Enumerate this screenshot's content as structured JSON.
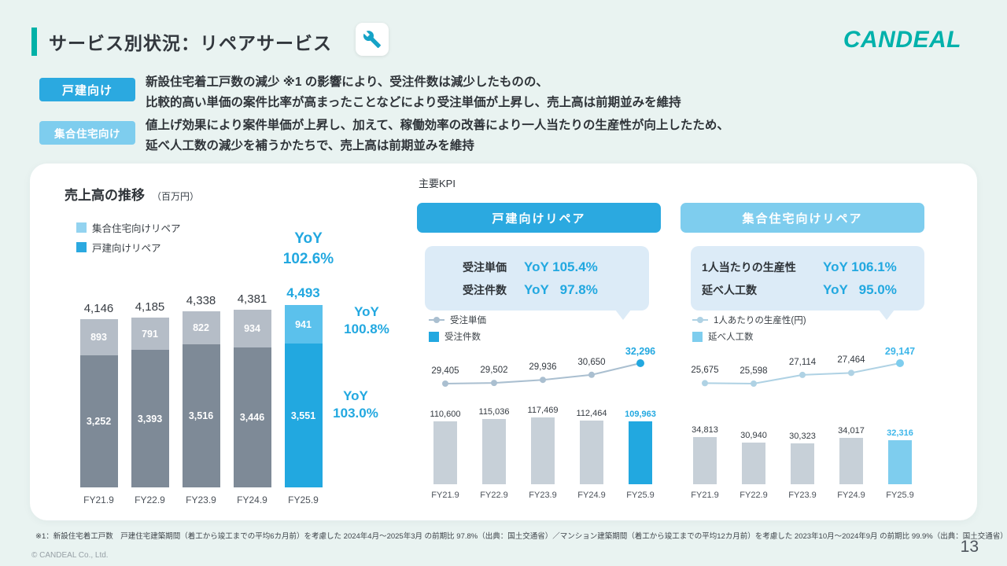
{
  "page": {
    "title": "サービス別状況：リペアサービス",
    "logo_text": "CANDEAL",
    "kpi_section_label": "主要KPI",
    "footnote": "※1：新設住宅着工戸数　戸建住宅建築期間（着工から竣工までの平均6カ月前）を考慮した 2024年4月～2025年3月 の前期比 97.8%（出典：国土交通省）／マンション建築期間（着工から竣工までの平均12カ月前）を考慮した 2023年10月～2024年9月 の前期比 99.9%（出典：国土交通省）",
    "copyright": "© CANDEAL Co., Ltd.",
    "page_number": "13"
  },
  "summary": [
    {
      "badge": "戸建向け",
      "line1": "新設住宅着工戸数の減少 ※1 の影響により、受注件数は減少したものの、",
      "line2": "比較的高い単価の案件比率が高まったことなどにより受注単価が上昇し、売上高は前期並みを維持"
    },
    {
      "badge": "集合住宅向け",
      "line1": "値上げ効果により案件単価が上昇し、加えて、稼働効率の改善により一人当たりの生産性が向上したため、",
      "line2": "延べ人工数の減少を補うかたちで、売上高は前期並みを維持"
    }
  ],
  "colors": {
    "teal": "#00b1a7",
    "blue": "#22a8e0",
    "light_blue": "#7ecdee",
    "sky": "#5bc1ec",
    "gray_bar_dark": "#7e8a97",
    "gray_bar_light": "#b5bdc7",
    "kpi_gray_bar": "#c7d0d8",
    "line_mid": "#aabfd0",
    "line_right": "#afd2e4",
    "right_value_blue": "#3db6e9",
    "box_bg": "#dcebf7",
    "page_bg": "#e9f3f1"
  },
  "chart_data": [
    {
      "type": "bar",
      "subtype": "stacked",
      "title": "売上高の推移",
      "unit_label": "（百万円）",
      "categories": [
        "FY21.9",
        "FY22.9",
        "FY23.9",
        "FY24.9",
        "FY25.9"
      ],
      "series": [
        {
          "name": "集合住宅向けリペア",
          "values": [
            893,
            791,
            822,
            934,
            941
          ]
        },
        {
          "name": "戸建向けリペア",
          "values": [
            3252,
            3393,
            3516,
            3446,
            3551
          ]
        }
      ],
      "totals": [
        4146,
        4185,
        4338,
        4381,
        4493
      ],
      "yoy_labels": [
        {
          "target": "total",
          "line1": "YoY",
          "line2": "102.6%"
        },
        {
          "target": "集合住宅向けリペア",
          "line1": "YoY",
          "line2": "100.8%"
        },
        {
          "target": "戸建向けリペア",
          "line1": "YoY",
          "line2": "103.0%"
        }
      ],
      "legend_position": "top-left",
      "grid": false
    },
    {
      "type": "bar",
      "subtype": "bar+line",
      "header": "戸建向けリペア",
      "kpi_rows": [
        {
          "label": "受注単価",
          "prefix": "YoY",
          "value": "105.4%"
        },
        {
          "label": "受注件数",
          "prefix": "YoY",
          "value": "97.8%"
        }
      ],
      "categories": [
        "FY21.9",
        "FY22.9",
        "FY23.9",
        "FY24.9",
        "FY25.9"
      ],
      "line_series": {
        "name": "受注単価",
        "values": [
          29405,
          29502,
          29936,
          30650,
          32296
        ]
      },
      "bar_series": {
        "name": "受注件数",
        "values": [
          110600,
          115036,
          117469,
          112464,
          109963
        ]
      },
      "grid": false
    },
    {
      "type": "bar",
      "subtype": "bar+line",
      "header": "集合住宅向けリペア",
      "kpi_rows": [
        {
          "label": "1人当たりの生産性",
          "prefix": "YoY",
          "value": "106.1%"
        },
        {
          "label": "延べ人工数",
          "prefix": "YoY",
          "value": "95.0%"
        }
      ],
      "categories": [
        "FY21.9",
        "FY22.9",
        "FY23.9",
        "FY24.9",
        "FY25.9"
      ],
      "line_series": {
        "name": "1人あたりの生産性(円)",
        "values": [
          25675,
          25598,
          27114,
          27464,
          29147
        ]
      },
      "bar_series": {
        "name": "延べ人工数",
        "values": [
          34813,
          30940,
          30323,
          34017,
          32316
        ]
      },
      "grid": false
    }
  ]
}
